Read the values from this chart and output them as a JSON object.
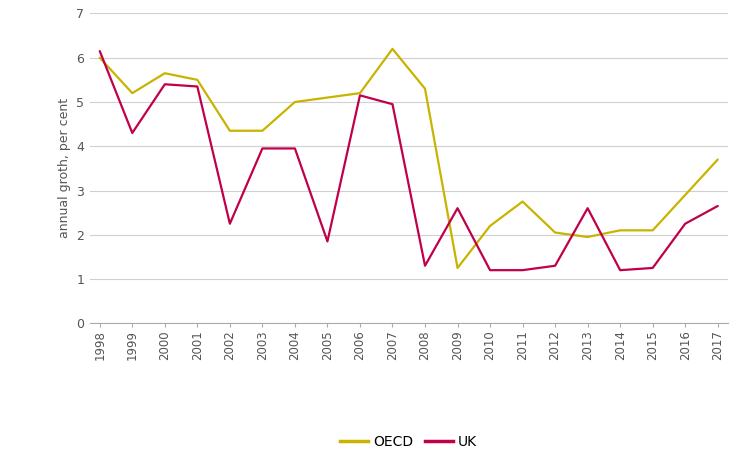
{
  "years": [
    1998,
    1999,
    2000,
    2001,
    2002,
    2003,
    2004,
    2005,
    2006,
    2007,
    2008,
    2009,
    2010,
    2011,
    2012,
    2013,
    2014,
    2015,
    2016,
    2017
  ],
  "oecd": [
    6.0,
    5.2,
    5.65,
    5.5,
    4.35,
    4.35,
    5.0,
    5.1,
    5.2,
    6.2,
    5.3,
    1.25,
    2.2,
    2.75,
    2.05,
    1.95,
    2.1,
    2.1,
    2.9,
    3.7
  ],
  "uk": [
    6.15,
    4.3,
    5.4,
    5.35,
    2.25,
    3.95,
    3.95,
    1.85,
    5.15,
    4.95,
    1.3,
    2.6,
    1.2,
    1.2,
    1.3,
    2.6,
    1.2,
    1.25,
    2.25,
    2.65
  ],
  "oecd_color": "#c8b400",
  "uk_color": "#c0004a",
  "ylabel": "annual groth, per cent",
  "ylim": [
    0,
    7
  ],
  "yticks": [
    0,
    1,
    2,
    3,
    4,
    5,
    6,
    7
  ],
  "background_color": "#ffffff",
  "grid_color": "#d0d0d0",
  "line_width": 1.6
}
